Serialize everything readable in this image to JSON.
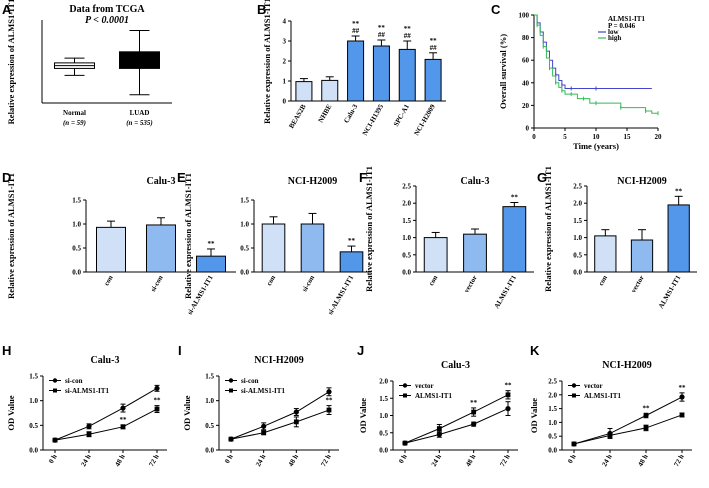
{
  "figure": {
    "panel_labels": [
      "A",
      "B",
      "C",
      "D",
      "E",
      "F",
      "G",
      "H",
      "I",
      "J",
      "K"
    ]
  },
  "colors": {
    "light": "#cfe0f7",
    "mid": "#8fbaf0",
    "dark": "#5297ea",
    "km_blue": "#4444cc",
    "km_green": "#33bb55"
  },
  "chart_data": [
    {
      "id": "A",
      "type": "box",
      "title": "Data from TCGA",
      "subtitle": "P < 0.0001",
      "ylabel": "Relative expression of ALMS1-IT1",
      "ylim": [
        0,
        3.0
      ],
      "categories": [
        "Normal",
        "LUAD"
      ],
      "n_labels": [
        "(n = 59)",
        "(n = 535)"
      ],
      "boxes": [
        {
          "min": 1.0,
          "q1": 1.25,
          "median": 1.35,
          "q3": 1.45,
          "max": 1.62,
          "fill": "#ffffff"
        },
        {
          "min": 0.3,
          "q1": 1.25,
          "median": 1.5,
          "q3": 1.85,
          "max": 2.62,
          "fill": "#000000"
        }
      ]
    },
    {
      "id": "B",
      "type": "bar",
      "ylabel": "Relative expression of ALMS1-IT1",
      "ylim": [
        0,
        4
      ],
      "yticks": [
        "0",
        "1",
        "2",
        "3",
        "4"
      ],
      "categories": [
        "BEAS2B",
        "NHBE",
        "Calu-3",
        "NCI-H1395",
        "SPC-A1",
        "NCI-H2009"
      ],
      "values": [
        0.97,
        1.03,
        3.0,
        2.75,
        2.58,
        2.08
      ],
      "errors": [
        0.15,
        0.18,
        0.25,
        0.3,
        0.42,
        0.33
      ],
      "annotations": [
        "",
        "",
        "**\n##",
        "**\n##",
        "**\n##",
        "**\n##"
      ]
    },
    {
      "id": "C",
      "type": "line",
      "title": "ALMS1-IT1",
      "p_text": "P = 0.046",
      "xlabel": "Time (years)",
      "ylabel": "Overall survival (%)",
      "xlim": [
        0,
        20
      ],
      "ylim": [
        0,
        100
      ],
      "xticks": [
        "0",
        "5",
        "10",
        "15",
        "20"
      ],
      "yticks": [
        "0",
        "20",
        "40",
        "60",
        "80",
        "100"
      ],
      "series": [
        {
          "name": "low",
          "x": [
            0,
            0.5,
            1,
            1.5,
            2,
            2.5,
            3,
            3.5,
            4,
            4.5,
            5,
            6,
            7,
            10,
            19
          ],
          "y": [
            100,
            93,
            85,
            76,
            68,
            60,
            53,
            47,
            42,
            38,
            35,
            35,
            35,
            35,
            35
          ]
        },
        {
          "name": "high",
          "x": [
            0,
            0.5,
            1,
            1.5,
            2,
            2.5,
            3,
            3.5,
            4,
            4.5,
            5,
            6,
            7,
            8,
            9,
            10,
            12,
            14,
            16,
            18,
            19,
            20
          ],
          "y": [
            100,
            91,
            82,
            72,
            62,
            53,
            46,
            40,
            36,
            33,
            30,
            30,
            26,
            26,
            22,
            22,
            22,
            18,
            18,
            15,
            13,
            13
          ]
        }
      ]
    },
    {
      "id": "D",
      "type": "bar",
      "title": "Calu-3",
      "ylabel": "Relative expression of ALMS1-IT1",
      "ylim": [
        0,
        1.5
      ],
      "yticks": [
        "0.0",
        "0.5",
        "1.0",
        "1.5"
      ],
      "categories": [
        "con",
        "si-con",
        "si-ALMS1-IT1"
      ],
      "values": [
        0.93,
        0.98,
        0.33
      ],
      "errors": [
        0.13,
        0.15,
        0.15
      ],
      "annotations": [
        "",
        "",
        "**"
      ]
    },
    {
      "id": "E",
      "type": "bar",
      "title": "NCI-H2009",
      "ylabel": "Relative expression of ALMS1-IT1",
      "ylim": [
        0,
        1.5
      ],
      "yticks": [
        "0.0",
        "0.5",
        "1.0",
        "1.5"
      ],
      "categories": [
        "con",
        "si-con",
        "si-ALMS1-IT1"
      ],
      "values": [
        1.0,
        1.0,
        0.42
      ],
      "errors": [
        0.15,
        0.22,
        0.12
      ],
      "annotations": [
        "",
        "",
        "**"
      ]
    },
    {
      "id": "F",
      "type": "bar",
      "title": "Calu-3",
      "ylabel": "Relative expression of ALMS1-IT1",
      "ylim": [
        0,
        2.5
      ],
      "yticks": [
        "0.0",
        "0.5",
        "1.0",
        "1.5",
        "2.0",
        "2.5"
      ],
      "categories": [
        "con",
        "vector",
        "ALMS1-IT1"
      ],
      "values": [
        1.0,
        1.1,
        1.9
      ],
      "errors": [
        0.15,
        0.15,
        0.12
      ],
      "annotations": [
        "",
        "",
        "**"
      ]
    },
    {
      "id": "G",
      "type": "bar",
      "title": "NCI-H2009",
      "ylabel": "Relative expression of ALMS1-IT1",
      "ylim": [
        0,
        2.5
      ],
      "yticks": [
        "0.0",
        "0.5",
        "1.0",
        "1.5",
        "2.0",
        "2.5"
      ],
      "categories": [
        "con",
        "vector",
        "ALMS1-IT1"
      ],
      "values": [
        1.05,
        0.93,
        1.95
      ],
      "errors": [
        0.18,
        0.3,
        0.25
      ],
      "annotations": [
        "",
        "",
        "**"
      ]
    },
    {
      "id": "H",
      "type": "line",
      "title": "Calu-3",
      "ylabel": "OD Value",
      "ylim": [
        0,
        1.5
      ],
      "yticks": [
        "0.0",
        "0.5",
        "1.0",
        "1.5"
      ],
      "categories": [
        "0 h",
        "24 h",
        "48 h",
        "72 h"
      ],
      "series": [
        {
          "name": "si-con",
          "marker": "circle",
          "values": [
            0.2,
            0.48,
            0.85,
            1.25
          ],
          "errors": [
            0.02,
            0.05,
            0.08,
            0.06
          ]
        },
        {
          "name": "si-ALMS1-IT1",
          "marker": "square",
          "values": [
            0.2,
            0.32,
            0.47,
            0.83
          ],
          "errors": [
            0.02,
            0.05,
            0.04,
            0.07
          ]
        }
      ],
      "annotations": [
        {
          "index": 2,
          "text": "**"
        },
        {
          "index": 3,
          "text": "**"
        }
      ]
    },
    {
      "id": "I",
      "type": "line",
      "title": "NCI-H2009",
      "ylabel": "OD Value",
      "ylim": [
        0,
        1.5
      ],
      "yticks": [
        "0.0",
        "0.5",
        "1.0",
        "1.5"
      ],
      "categories": [
        "0 h",
        "24 h",
        "48 h",
        "72 h"
      ],
      "series": [
        {
          "name": "si-con",
          "marker": "circle",
          "values": [
            0.22,
            0.48,
            0.77,
            1.18
          ],
          "errors": [
            0.02,
            0.07,
            0.07,
            0.08
          ]
        },
        {
          "name": "si-ALMS1-IT1",
          "marker": "square",
          "values": [
            0.22,
            0.35,
            0.57,
            0.81
          ],
          "errors": [
            0.02,
            0.04,
            0.1,
            0.09
          ]
        }
      ],
      "annotations": [
        {
          "index": 3,
          "text": "**"
        }
      ]
    },
    {
      "id": "J",
      "type": "line",
      "title": "Calu-3",
      "ylabel": "OD Value",
      "ylim": [
        0,
        2.0
      ],
      "yticks": [
        "0.0",
        "0.5",
        "1.0",
        "1.5",
        "2.0"
      ],
      "categories": [
        "0 h",
        "24 h",
        "48 h",
        "72 h"
      ],
      "series": [
        {
          "name": "vector",
          "marker": "circle",
          "values": [
            0.2,
            0.45,
            0.75,
            1.2
          ],
          "errors": [
            0.02,
            0.08,
            0.06,
            0.2
          ]
        },
        {
          "name": "ALMS1-IT1",
          "marker": "square",
          "values": [
            0.2,
            0.62,
            1.1,
            1.6
          ],
          "errors": [
            0.02,
            0.12,
            0.12,
            0.12
          ]
        }
      ],
      "annotations": [
        {
          "index": 2,
          "text": "**"
        },
        {
          "index": 3,
          "text": "**"
        }
      ]
    },
    {
      "id": "K",
      "type": "line",
      "title": "NCI-H2009",
      "ylabel": "OD Value",
      "ylim": [
        0,
        2.5
      ],
      "yticks": [
        "0.0",
        "0.5",
        "1.0",
        "1.5",
        "2.0",
        "2.5"
      ],
      "categories": [
        "0 h",
        "24 h",
        "48 h",
        "72 h"
      ],
      "series": [
        {
          "name": "vector",
          "marker": "circle",
          "values": [
            0.22,
            0.6,
            1.25,
            1.92
          ],
          "errors": [
            0.03,
            0.18,
            0.08,
            0.15
          ]
        },
        {
          "name": "ALMS1-IT1",
          "marker": "square",
          "values": [
            0.22,
            0.53,
            0.8,
            1.27
          ],
          "errors": [
            0.03,
            0.1,
            0.1,
            0.07
          ]
        }
      ],
      "annotations": [
        {
          "index": 2,
          "text": "**"
        },
        {
          "index": 3,
          "text": "**"
        }
      ]
    }
  ]
}
